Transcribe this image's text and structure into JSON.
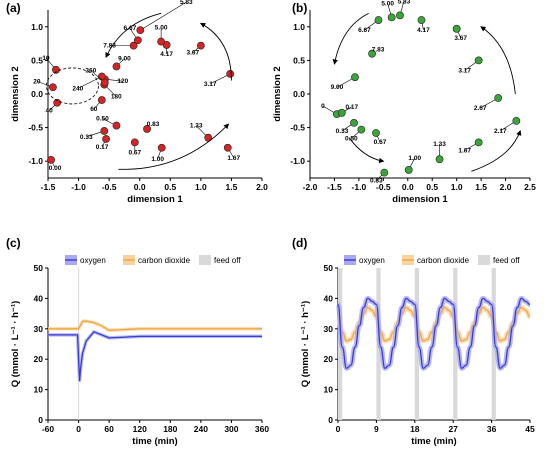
{
  "colors": {
    "red_point": "#d42424",
    "green_point": "#3aa63a",
    "oxygen": "#3b3bd1",
    "oxygen_band": "#a9a9f0",
    "carbon_dioxide": "#f2a640",
    "carbon_dioxide_band": "#f7d3a0",
    "feed_off": "#d9d9d9"
  },
  "chart_data": [
    {
      "panel": "(a)",
      "type": "scatter",
      "xlabel": "dimension 1",
      "ylabel": "dimension 2",
      "xlim": [
        -1.5,
        2.0
      ],
      "ylim": [
        -1.25,
        1.25
      ],
      "xticks": [
        "-1.5",
        "-1.0",
        "-0.5",
        "0.0",
        "0.5",
        "1.0",
        "1.5",
        "2.0"
      ],
      "yticks": [
        "-1.0",
        "-0.5",
        "0.0",
        "0.5",
        "1.0"
      ],
      "points": [
        {
          "label": "0.00",
          "x": -1.45,
          "y": -0.98
        },
        {
          "label": "0.17",
          "x": -0.55,
          "y": -0.67
        },
        {
          "label": "0.33",
          "x": -0.58,
          "y": -0.55
        },
        {
          "label": "0.50",
          "x": -0.38,
          "y": -0.47
        },
        {
          "label": "0.67",
          "x": -0.08,
          "y": -0.72
        },
        {
          "label": "0.83",
          "x": 0.12,
          "y": -0.52
        },
        {
          "label": "1.00",
          "x": 0.36,
          "y": -0.8
        },
        {
          "label": "1.33",
          "x": 1.12,
          "y": -0.65
        },
        {
          "label": "1.67",
          "x": 1.44,
          "y": -0.8
        },
        {
          "label": "3.17",
          "x": 1.48,
          "y": 0.3
        },
        {
          "label": "3.67",
          "x": 1.0,
          "y": 0.72
        },
        {
          "label": "4.17",
          "x": 0.44,
          "y": 0.73
        },
        {
          "label": "5.00",
          "x": 0.35,
          "y": 0.78
        },
        {
          "label": "5.83",
          "x": 0.01,
          "y": 0.95
        },
        {
          "label": "6.67",
          "x": -0.03,
          "y": 0.8
        },
        {
          "label": "7.83",
          "x": -0.1,
          "y": 0.72
        },
        {
          "label": "9.00",
          "x": -0.38,
          "y": 0.41
        },
        {
          "label": "10",
          "x": -1.37,
          "y": 0.36
        },
        {
          "label": "20",
          "x": -1.42,
          "y": 0.1
        },
        {
          "label": "40",
          "x": -1.35,
          "y": -0.13
        },
        {
          "label": "60",
          "x": -0.62,
          "y": -0.09
        },
        {
          "label": "120",
          "x": -0.57,
          "y": 0.22
        },
        {
          "label": "180",
          "x": -0.58,
          "y": 0.14
        },
        {
          "label": "240",
          "x": -0.62,
          "y": 0.26
        },
        {
          "label": "360",
          "x": -0.57,
          "y": 0.17
        }
      ]
    },
    {
      "panel": "(b)",
      "type": "scatter",
      "xlabel": "dimension 1",
      "ylabel": "dimension 2",
      "xlim": [
        -2.0,
        2.5
      ],
      "ylim": [
        -1.25,
        1.25
      ],
      "xticks": [
        "-2.0",
        "-1.5",
        "-1.0",
        "-0.5",
        "0.0",
        "0.5",
        "1.0",
        "1.5",
        "2.0",
        "2.5"
      ],
      "yticks": [
        "-1.0",
        "-0.5",
        "0.0",
        "0.5",
        "1.0"
      ],
      "points": [
        {
          "label": "0",
          "x": -1.45,
          "y": -0.3
        },
        {
          "label": "0.17",
          "x": -1.35,
          "y": -0.28
        },
        {
          "label": "0.33",
          "x": -1.1,
          "y": -0.43
        },
        {
          "label": "0.50",
          "x": -0.95,
          "y": -0.53
        },
        {
          "label": "0.67",
          "x": -0.65,
          "y": -0.58
        },
        {
          "label": "0.83",
          "x": -0.48,
          "y": -1.17
        },
        {
          "label": "1.00",
          "x": 0.02,
          "y": -1.13
        },
        {
          "label": "1.33",
          "x": 0.65,
          "y": -0.97
        },
        {
          "label": "1.67",
          "x": 1.45,
          "y": -0.72
        },
        {
          "label": "2.17",
          "x": 2.22,
          "y": -0.4
        },
        {
          "label": "2.67",
          "x": 1.85,
          "y": -0.06
        },
        {
          "label": "3.17",
          "x": 1.45,
          "y": 0.5
        },
        {
          "label": "3.67",
          "x": 1.0,
          "y": 0.97
        },
        {
          "label": "4.17",
          "x": 0.28,
          "y": 1.1
        },
        {
          "label": "5.00",
          "x": -0.33,
          "y": 1.14
        },
        {
          "label": "5.83",
          "x": -0.16,
          "y": 1.17
        },
        {
          "label": "6.67",
          "x": -0.6,
          "y": 1.1
        },
        {
          "label": "7.83",
          "x": -0.73,
          "y": 0.6
        },
        {
          "label": "9.00",
          "x": -1.08,
          "y": 0.25
        }
      ]
    },
    {
      "panel": "(c)",
      "type": "line",
      "xlabel": "time (min)",
      "ylabel": "Q (mmol · L⁻¹ · h⁻¹)",
      "xlim": [
        -60,
        360
      ],
      "ylim": [
        0,
        50
      ],
      "xticks": [
        "-60",
        "0",
        "60",
        "120",
        "180",
        "240",
        "300",
        "360"
      ],
      "yticks": [
        "0",
        "10",
        "20",
        "30",
        "40",
        "50"
      ],
      "legend": [
        "oxygen",
        "carbon dioxide",
        "feed off"
      ],
      "legend_position": "top",
      "feed_off": [
        [
          -1,
          1
        ]
      ],
      "series": [
        {
          "name": "oxygen",
          "x": [
            -60,
            -30,
            -2,
            0,
            2,
            4,
            8,
            15,
            30,
            60,
            120,
            180,
            240,
            300,
            360
          ],
          "y": [
            28,
            28,
            28,
            20,
            13,
            17,
            22,
            26,
            29,
            27,
            27.5,
            27.5,
            27.5,
            27.5,
            27.5
          ]
        },
        {
          "name": "carbon dioxide",
          "x": [
            -60,
            -30,
            -2,
            0,
            3,
            8,
            15,
            30,
            45,
            60,
            120,
            180,
            240,
            300,
            360
          ],
          "y": [
            30,
            30,
            30,
            30,
            31,
            32.5,
            32.5,
            32,
            31,
            29.5,
            30,
            30,
            30,
            30,
            30
          ]
        }
      ]
    },
    {
      "panel": "(d)",
      "type": "line",
      "xlabel": "time (min)",
      "ylabel": "Q (mmol · L⁻¹ · h⁻¹)",
      "xlim": [
        0,
        45
      ],
      "ylim": [
        0,
        50
      ],
      "xticks": [
        "0",
        "9",
        "18",
        "27",
        "36",
        "45"
      ],
      "yticks": [
        "0",
        "10",
        "20",
        "30",
        "40",
        "50"
      ],
      "legend": [
        "oxygen",
        "carbon dioxide",
        "feed off"
      ],
      "legend_position": "top",
      "period": 9,
      "feed_off": [
        [
          0,
          1
        ],
        [
          9,
          10
        ],
        [
          18,
          19
        ],
        [
          27,
          28
        ],
        [
          36,
          37
        ]
      ],
      "series": [
        {
          "name": "oxygen",
          "cycle_x": [
            0,
            1,
            2,
            3,
            4,
            5,
            6,
            7,
            8,
            9
          ],
          "cycle_y": [
            38,
            24,
            17,
            18,
            24,
            31,
            37,
            40,
            39,
            38
          ]
        },
        {
          "name": "carbon dioxide",
          "cycle_x": [
            0,
            1,
            2,
            3,
            4,
            5,
            6,
            7,
            8,
            9
          ],
          "cycle_y": [
            34,
            29,
            26,
            26.5,
            29,
            32,
            35,
            37,
            36,
            34
          ]
        }
      ]
    }
  ]
}
